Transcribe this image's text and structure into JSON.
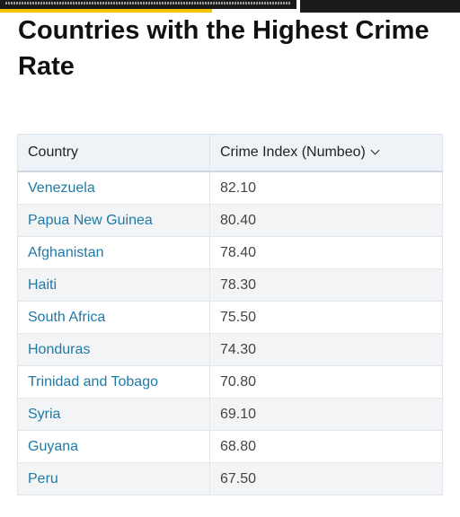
{
  "page": {
    "title": "Countries with the Highest Crime Rate"
  },
  "table": {
    "headers": [
      "Country",
      "Crime Index (Numbeo)"
    ],
    "rows": [
      {
        "country": "Venezuela",
        "index": "82.10"
      },
      {
        "country": "Papua New Guinea",
        "index": "80.40"
      },
      {
        "country": "Afghanistan",
        "index": "78.40"
      },
      {
        "country": "Haiti",
        "index": "78.30"
      },
      {
        "country": "South Africa",
        "index": "75.50"
      },
      {
        "country": "Honduras",
        "index": "74.30"
      },
      {
        "country": "Trinidad and Tobago",
        "index": "70.80"
      },
      {
        "country": "Syria",
        "index": "69.10"
      },
      {
        "country": "Guyana",
        "index": "68.80"
      },
      {
        "country": "Peru",
        "index": "67.50"
      }
    ]
  },
  "colors": {
    "link": "#1e7aa6",
    "header_bg": "#eef3f7",
    "zebra": "#f3f4f5",
    "accent": "#f5c400"
  },
  "icons": {
    "sort": "chevron-down-icon"
  }
}
